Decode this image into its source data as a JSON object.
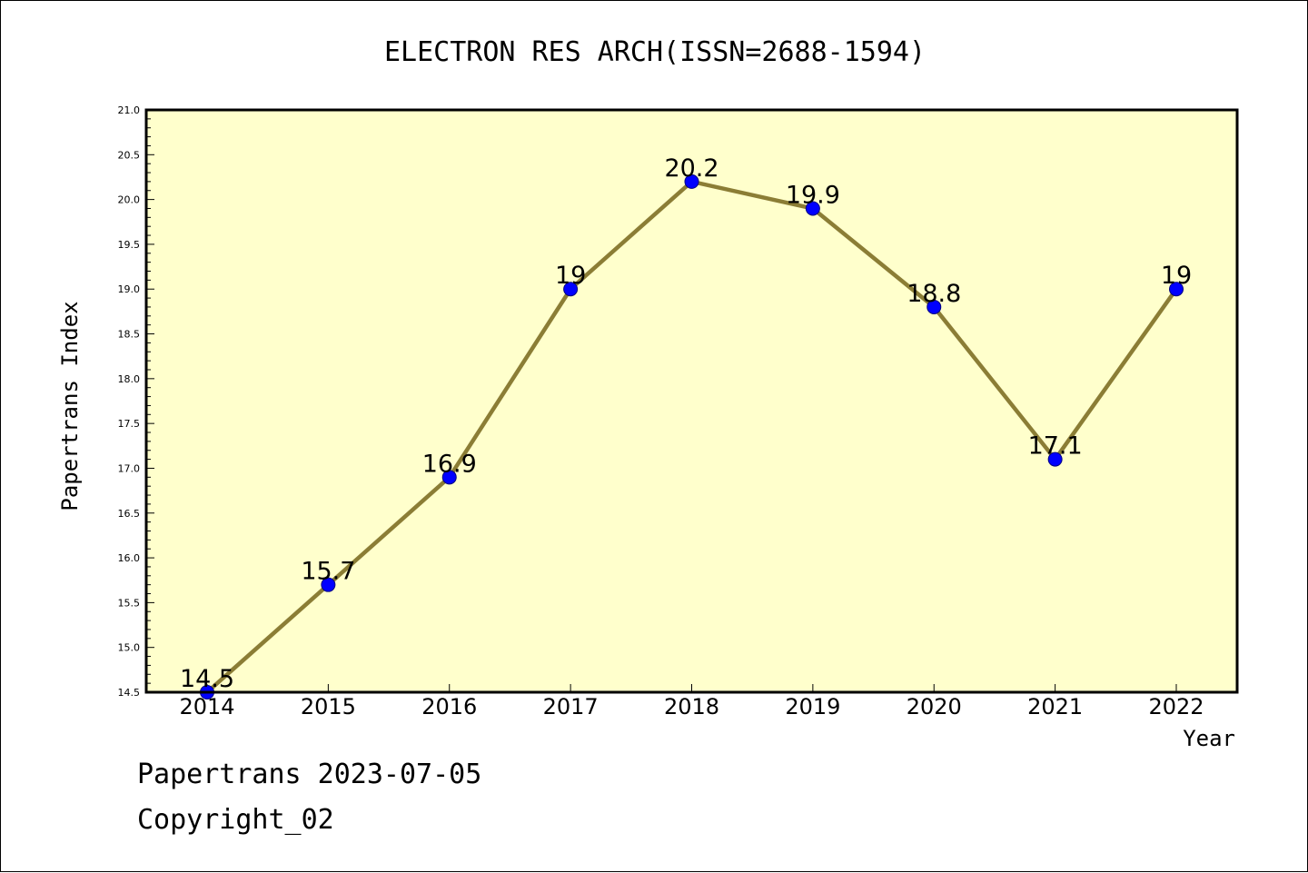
{
  "chart_data": {
    "type": "line",
    "title": "ELECTRON RES ARCH(ISSN=2688-1594)",
    "xlabel": "Year",
    "ylabel": "Papertrans Index",
    "categories": [
      "2014",
      "2015",
      "2016",
      "2017",
      "2018",
      "2019",
      "2020",
      "2021",
      "2022"
    ],
    "series": [
      {
        "values": [
          14.5,
          15.7,
          16.9,
          19,
          20.2,
          19.9,
          18.8,
          17.1,
          19
        ],
        "data_labels": [
          "14.5",
          "15.7",
          "16.9",
          "19",
          "20.2",
          "19.9",
          "18.8",
          "17.1",
          "19"
        ]
      }
    ],
    "ylim": [
      14.5,
      21.0
    ],
    "y_ticks": [
      "14.5",
      "15.0",
      "15.5",
      "16.0",
      "16.5",
      "17.0",
      "17.5",
      "18.0",
      "18.5",
      "19.0",
      "19.5",
      "20.0",
      "20.5",
      "21.0"
    ],
    "grid": false,
    "legend": "none",
    "colors": {
      "plot_background": "#ffffcc",
      "line": "#8b7d35",
      "marker": "#0000ff",
      "marker_edge": "#000080"
    }
  },
  "footer": {
    "line1": "Papertrans 2023-07-05",
    "line2": "Copyright_02"
  }
}
